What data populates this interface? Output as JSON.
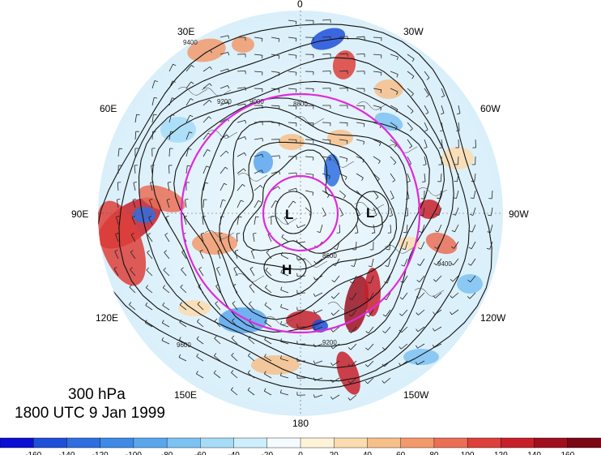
{
  "title": {
    "level": "300 hPa",
    "time": "1800 UTC 9 Jan 1999"
  },
  "longitude_labels": {
    "lon_0": "0",
    "lon_30w": "30W",
    "lon_60w": "60W",
    "lon_90w": "90W",
    "lon_120w": "120W",
    "lon_150w": "150W",
    "lon_180": "180",
    "lon_150e": "150E",
    "lon_120e": "120E",
    "lon_90e": "90E",
    "lon_60e": "60E",
    "lon_30e": "30E"
  },
  "systems": {
    "low_1": "L",
    "low_2": "L",
    "high_1": "H"
  },
  "contour_labels": {
    "c1": "9400",
    "c2": "9200",
    "c3": "9000",
    "c4": "8800",
    "c5": "8600",
    "c6": "9600",
    "c7": "9200",
    "c8": "9400"
  },
  "colorbar": {
    "ticks": [
      "-160",
      "-140",
      "-120",
      "-100",
      "-80",
      "-60",
      "-40",
      "-20",
      "0",
      "20",
      "40",
      "60",
      "80",
      "100",
      "120",
      "140",
      "160"
    ],
    "colors": [
      "#0a0fd2",
      "#1f4fd8",
      "#2e6ee0",
      "#3f8ae6",
      "#5aa6ec",
      "#7cc2f2",
      "#a6dcf7",
      "#cdeefb",
      "#f4fbff",
      "#fdf3d8",
      "#fbdcae",
      "#f7bf8a",
      "#f29a6c",
      "#ea6f55",
      "#dd3f3a",
      "#c7202a",
      "#a00f1e",
      "#7a0716"
    ]
  },
  "highlight_circle_color": "#e02ad9"
}
